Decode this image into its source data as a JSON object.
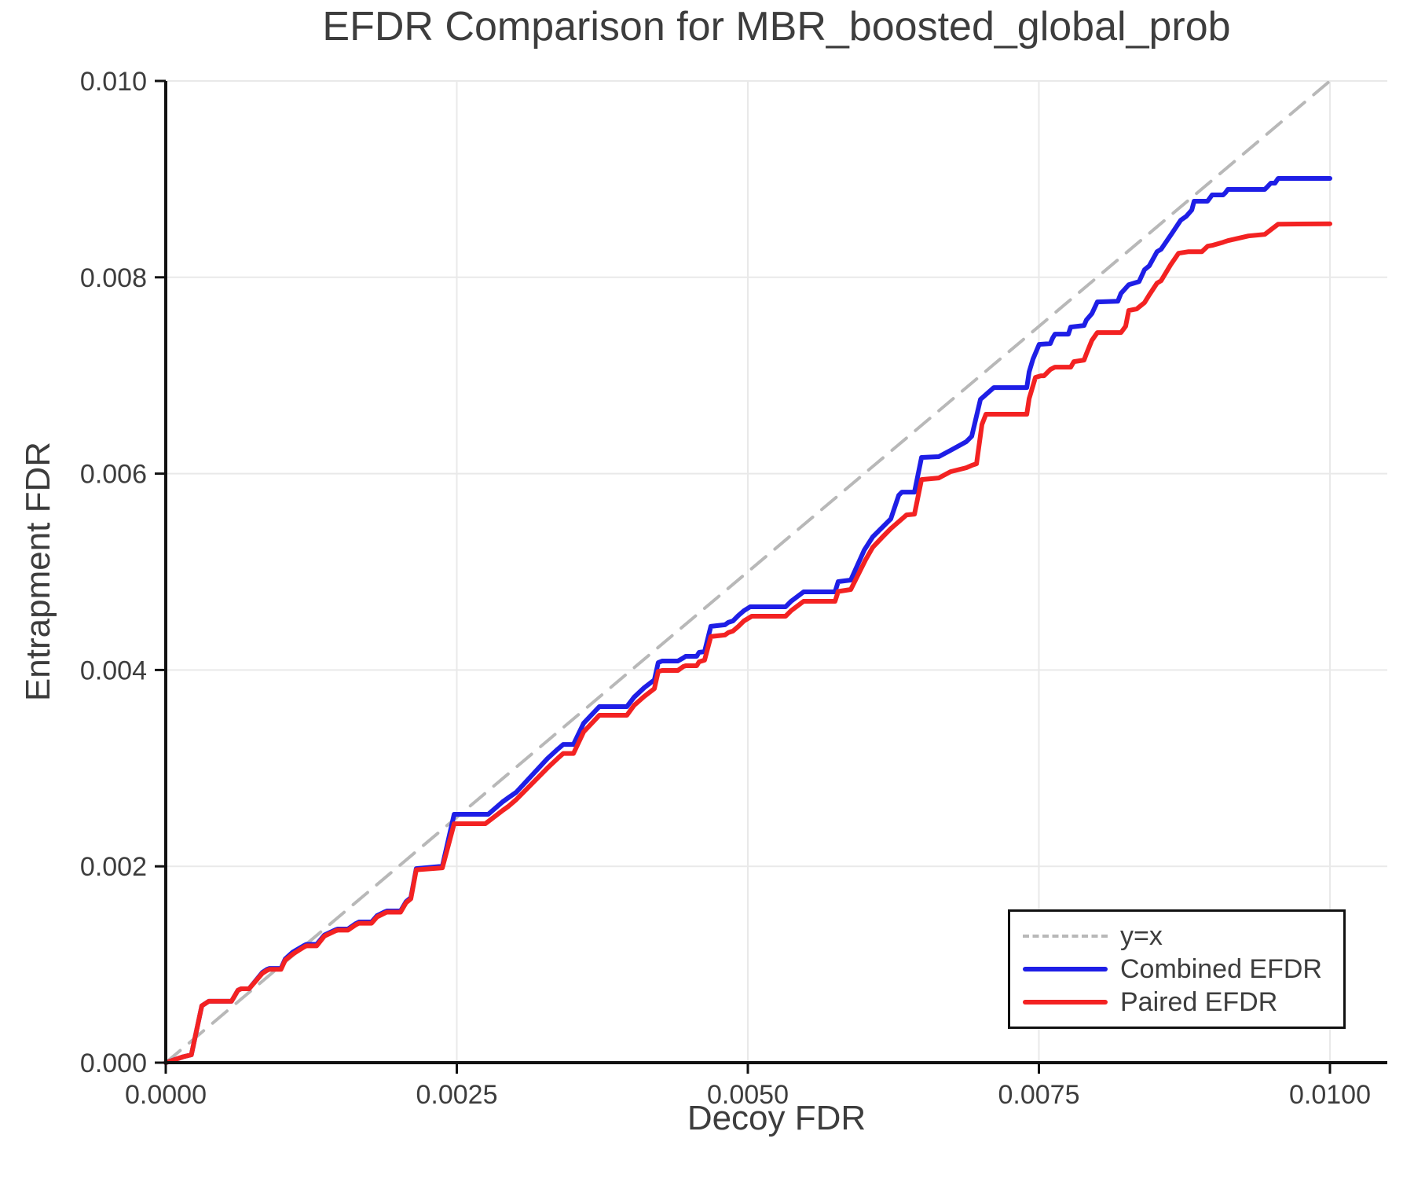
{
  "title": "EFDR Comparison for MBR_boosted_global_prob",
  "axes": {
    "x": {
      "label": "Decoy FDR",
      "tick_labels": [
        "0.0000",
        "0.0025",
        "0.0050",
        "0.0075",
        "0.0100"
      ],
      "tick_values": [
        0.0,
        0.0025,
        0.005,
        0.0075,
        0.01
      ]
    },
    "y": {
      "label": "Entrapment FDR",
      "tick_labels": [
        "0.000",
        "0.002",
        "0.004",
        "0.006",
        "0.008",
        "0.010"
      ],
      "tick_values": [
        0.0,
        0.002,
        0.004,
        0.006,
        0.008,
        0.01
      ]
    }
  },
  "legend": {
    "entries": [
      {
        "label": "y=x",
        "style": "dashed",
        "color": "#b8b8b8"
      },
      {
        "label": "Combined EFDR",
        "style": "solid",
        "color": "#1e1ee6"
      },
      {
        "label": "Paired EFDR",
        "style": "solid",
        "color": "#f32222"
      }
    ],
    "position": "lower right"
  },
  "colors": {
    "text": "#3d3d3d",
    "grid": "#e9e9e9",
    "spine": "#111111",
    "identity_line": "#b8b8b8",
    "combined": "#1e1ee6",
    "paired": "#f32222"
  },
  "chart_data": {
    "type": "line",
    "title": "EFDR Comparison for MBR_boosted_global_prob",
    "xlabel": "Decoy FDR",
    "ylabel": "Entrapment FDR",
    "xlim": [
      0.0,
      0.01
    ],
    "ylim": [
      0.0,
      0.01
    ],
    "grid": true,
    "legend_position": "lower right",
    "series": [
      {
        "name": "y=x",
        "color": "#b8b8b8",
        "style": "dashed",
        "width": 4,
        "points": [
          [
            0.0,
            0.0
          ],
          [
            0.01,
            0.01
          ]
        ]
      },
      {
        "name": "Combined EFDR",
        "color": "#1e1ee6",
        "style": "solid",
        "width": 6,
        "points": [
          [
            0.0,
            0.0
          ],
          [
            0.00015,
            6e-05
          ],
          [
            0.00022,
            8e-05
          ],
          [
            0.00031,
            0.00058
          ],
          [
            0.00037,
            0.000625
          ],
          [
            0.000565,
            0.000625
          ],
          [
            0.00062,
            0.000737
          ],
          [
            0.000648,
            0.000753
          ],
          [
            0.000715,
            0.000753
          ],
          [
            0.00083,
            0.00092
          ],
          [
            0.00087,
            0.00095
          ],
          [
            0.00089,
            0.00096
          ],
          [
            0.00099,
            0.00096
          ],
          [
            0.001026,
            0.001057
          ],
          [
            0.00109,
            0.001125
          ],
          [
            0.00119,
            0.001195
          ],
          [
            0.001208,
            0.001205
          ],
          [
            0.001296,
            0.001205
          ],
          [
            0.001363,
            0.0013
          ],
          [
            0.001458,
            0.001353
          ],
          [
            0.001478,
            0.001361
          ],
          [
            0.001565,
            0.001361
          ],
          [
            0.001633,
            0.001417
          ],
          [
            0.00166,
            0.001433
          ],
          [
            0.001768,
            0.001433
          ],
          [
            0.001815,
            0.001497
          ],
          [
            0.001883,
            0.001537
          ],
          [
            0.0019,
            0.001545
          ],
          [
            0.002017,
            0.001545
          ],
          [
            0.002065,
            0.001641
          ],
          [
            0.002105,
            0.001681
          ],
          [
            0.002152,
            0.001977
          ],
          [
            0.002376,
            0.002001
          ],
          [
            0.002477,
            0.00253
          ],
          [
            0.00277,
            0.00253
          ],
          [
            0.002895,
            0.002658
          ],
          [
            0.002942,
            0.002698
          ],
          [
            0.00301,
            0.002754
          ],
          [
            0.003279,
            0.003098
          ],
          [
            0.003367,
            0.003194
          ],
          [
            0.003414,
            0.003242
          ],
          [
            0.003502,
            0.003242
          ],
          [
            0.00359,
            0.003458
          ],
          [
            0.003725,
            0.003627
          ],
          [
            0.003961,
            0.003627
          ],
          [
            0.004023,
            0.003723
          ],
          [
            0.004109,
            0.003819
          ],
          [
            0.004197,
            0.003899
          ],
          [
            0.00423,
            0.004075
          ],
          [
            0.004264,
            0.004091
          ],
          [
            0.004399,
            0.004091
          ],
          [
            0.004446,
            0.004123
          ],
          [
            0.004466,
            0.004139
          ],
          [
            0.004561,
            0.004139
          ],
          [
            0.004581,
            0.004179
          ],
          [
            0.004628,
            0.004187
          ],
          [
            0.004682,
            0.004444
          ],
          [
            0.004803,
            0.00446
          ],
          [
            0.004831,
            0.004484
          ],
          [
            0.004872,
            0.0045
          ],
          [
            0.004919,
            0.004556
          ],
          [
            0.004966,
            0.004604
          ],
          [
            0.00502,
            0.004644
          ],
          [
            0.005324,
            0.004644
          ],
          [
            0.005371,
            0.0047
          ],
          [
            0.005479,
            0.004796
          ],
          [
            0.005749,
            0.004796
          ],
          [
            0.005776,
            0.0049
          ],
          [
            0.005884,
            0.004916
          ],
          [
            0.005999,
            0.00522
          ],
          [
            0.006073,
            0.005356
          ],
          [
            0.006161,
            0.00546
          ],
          [
            0.006228,
            0.00554
          ],
          [
            0.006296,
            0.00578
          ],
          [
            0.006323,
            0.005812
          ],
          [
            0.006431,
            0.005812
          ],
          [
            0.006492,
            0.006165
          ],
          [
            0.00664,
            0.006173
          ],
          [
            0.006741,
            0.006237
          ],
          [
            0.006876,
            0.006325
          ],
          [
            0.006923,
            0.006381
          ],
          [
            0.006998,
            0.006757
          ],
          [
            0.007113,
            0.006877
          ],
          [
            0.007396,
            0.006877
          ],
          [
            0.007416,
            0.007037
          ],
          [
            0.007449,
            0.007165
          ],
          [
            0.007503,
            0.007317
          ],
          [
            0.007598,
            0.007325
          ],
          [
            0.007618,
            0.007381
          ],
          [
            0.007638,
            0.007421
          ],
          [
            0.007753,
            0.007421
          ],
          [
            0.007773,
            0.007493
          ],
          [
            0.007888,
            0.007509
          ],
          [
            0.007908,
            0.007565
          ],
          [
            0.007955,
            0.007629
          ],
          [
            0.008002,
            0.007749
          ],
          [
            0.008178,
            0.007757
          ],
          [
            0.008205,
            0.007837
          ],
          [
            0.008272,
            0.007925
          ],
          [
            0.00836,
            0.007957
          ],
          [
            0.008407,
            0.008077
          ],
          [
            0.008448,
            0.008117
          ],
          [
            0.008515,
            0.008261
          ],
          [
            0.008549,
            0.008285
          ],
          [
            0.008644,
            0.008449
          ],
          [
            0.008718,
            0.008581
          ],
          [
            0.008766,
            0.008621
          ],
          [
            0.008813,
            0.008685
          ],
          [
            0.008833,
            0.008775
          ],
          [
            0.008948,
            0.008775
          ],
          [
            0.008968,
            0.008807
          ],
          [
            0.008988,
            0.008839
          ],
          [
            0.009082,
            0.008839
          ],
          [
            0.009103,
            0.008863
          ],
          [
            0.009123,
            0.008895
          ],
          [
            0.00944,
            0.008895
          ],
          [
            0.00946,
            0.008919
          ],
          [
            0.009492,
            0.008959
          ],
          [
            0.009528,
            0.008959
          ],
          [
            0.009555,
            0.009007
          ],
          [
            0.01,
            0.009007
          ]
        ]
      },
      {
        "name": "Paired EFDR",
        "color": "#f32222",
        "style": "solid",
        "width": 6,
        "points": [
          [
            0.0,
            0.0
          ],
          [
            0.00015,
            6e-05
          ],
          [
            0.00022,
            8e-05
          ],
          [
            0.00031,
            0.00058
          ],
          [
            0.00037,
            0.000625
          ],
          [
            0.000565,
            0.000625
          ],
          [
            0.00062,
            0.000737
          ],
          [
            0.000648,
            0.000753
          ],
          [
            0.000715,
            0.000753
          ],
          [
            0.00083,
            0.00091
          ],
          [
            0.00087,
            0.00094
          ],
          [
            0.00089,
            0.00095
          ],
          [
            0.00099,
            0.00095
          ],
          [
            0.001026,
            0.001045
          ],
          [
            0.00109,
            0.001105
          ],
          [
            0.00119,
            0.00118
          ],
          [
            0.001208,
            0.00119
          ],
          [
            0.001296,
            0.00119
          ],
          [
            0.001363,
            0.00129
          ],
          [
            0.001458,
            0.001343
          ],
          [
            0.001478,
            0.00135
          ],
          [
            0.001565,
            0.00135
          ],
          [
            0.001633,
            0.001405
          ],
          [
            0.00166,
            0.00142
          ],
          [
            0.001768,
            0.00142
          ],
          [
            0.001815,
            0.001485
          ],
          [
            0.001883,
            0.001525
          ],
          [
            0.0019,
            0.001533
          ],
          [
            0.002017,
            0.001533
          ],
          [
            0.002065,
            0.00163
          ],
          [
            0.002105,
            0.00167
          ],
          [
            0.002152,
            0.001965
          ],
          [
            0.002376,
            0.001985
          ],
          [
            0.002477,
            0.002434
          ],
          [
            0.002745,
            0.002434
          ],
          [
            0.002895,
            0.00257
          ],
          [
            0.002942,
            0.00261
          ],
          [
            0.00301,
            0.00268
          ],
          [
            0.003279,
            0.003002
          ],
          [
            0.003367,
            0.0031
          ],
          [
            0.003414,
            0.00315
          ],
          [
            0.003502,
            0.00315
          ],
          [
            0.00359,
            0.00337
          ],
          [
            0.003725,
            0.003539
          ],
          [
            0.003961,
            0.003539
          ],
          [
            0.004023,
            0.00364
          ],
          [
            0.004109,
            0.00373
          ],
          [
            0.004197,
            0.00381
          ],
          [
            0.00423,
            0.003985
          ],
          [
            0.004264,
            0.003995
          ],
          [
            0.004399,
            0.003995
          ],
          [
            0.004446,
            0.004035
          ],
          [
            0.004466,
            0.004043
          ],
          [
            0.004561,
            0.004043
          ],
          [
            0.004581,
            0.004083
          ],
          [
            0.004628,
            0.0041
          ],
          [
            0.004682,
            0.00434
          ],
          [
            0.004803,
            0.004356
          ],
          [
            0.004831,
            0.00438
          ],
          [
            0.004872,
            0.004396
          ],
          [
            0.004919,
            0.004444
          ],
          [
            0.004966,
            0.0045
          ],
          [
            0.005034,
            0.004548
          ],
          [
            0.005324,
            0.004548
          ],
          [
            0.005371,
            0.004604
          ],
          [
            0.005479,
            0.0047
          ],
          [
            0.005749,
            0.0047
          ],
          [
            0.005776,
            0.0048
          ],
          [
            0.005884,
            0.00482
          ],
          [
            0.00601,
            0.00512
          ],
          [
            0.006073,
            0.00525
          ],
          [
            0.006161,
            0.00536
          ],
          [
            0.006228,
            0.00544
          ],
          [
            0.006363,
            0.00558
          ],
          [
            0.006431,
            0.005588
          ],
          [
            0.006492,
            0.00594
          ],
          [
            0.00664,
            0.005956
          ],
          [
            0.006741,
            0.00602
          ],
          [
            0.006876,
            0.00606
          ],
          [
            0.006923,
            0.006084
          ],
          [
            0.006964,
            0.006101
          ],
          [
            0.007011,
            0.006501
          ],
          [
            0.007045,
            0.006605
          ],
          [
            0.007396,
            0.006605
          ],
          [
            0.007416,
            0.006765
          ],
          [
            0.00747,
            0.006981
          ],
          [
            0.007517,
            0.006997
          ],
          [
            0.007544,
            0.006997
          ],
          [
            0.007598,
            0.007061
          ],
          [
            0.007638,
            0.007085
          ],
          [
            0.007773,
            0.007085
          ],
          [
            0.0078,
            0.007141
          ],
          [
            0.007888,
            0.007157
          ],
          [
            0.007908,
            0.007221
          ],
          [
            0.007955,
            0.007357
          ],
          [
            0.008002,
            0.007437
          ],
          [
            0.008205,
            0.007437
          ],
          [
            0.008245,
            0.007501
          ],
          [
            0.008272,
            0.007661
          ],
          [
            0.00834,
            0.007677
          ],
          [
            0.008407,
            0.007741
          ],
          [
            0.008448,
            0.007821
          ],
          [
            0.008515,
            0.007941
          ],
          [
            0.008549,
            0.007965
          ],
          [
            0.00863,
            0.008125
          ],
          [
            0.0087,
            0.008245
          ],
          [
            0.008786,
            0.008261
          ],
          [
            0.0089,
            0.008261
          ],
          [
            0.00895,
            0.008317
          ],
          [
            0.008988,
            0.008325
          ],
          [
            0.009082,
            0.008357
          ],
          [
            0.009123,
            0.008373
          ],
          [
            0.0093,
            0.008421
          ],
          [
            0.00944,
            0.008437
          ],
          [
            0.00951,
            0.008501
          ],
          [
            0.009555,
            0.008541
          ],
          [
            0.01,
            0.008545
          ]
        ]
      }
    ]
  }
}
